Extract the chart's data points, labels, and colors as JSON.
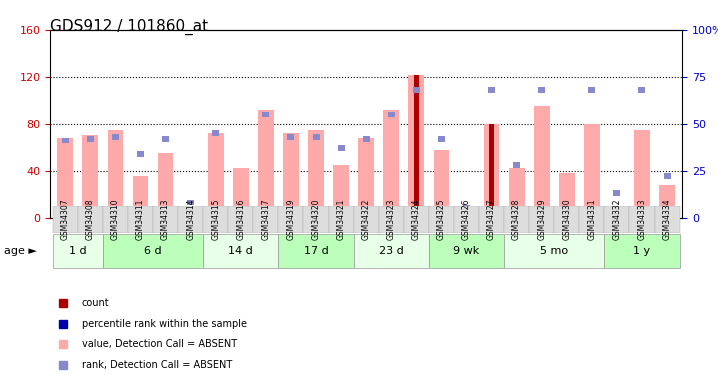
{
  "title": "GDS912 / 101860_at",
  "samples": [
    "GSM34307",
    "GSM34308",
    "GSM34310",
    "GSM34311",
    "GSM34313",
    "GSM34314",
    "GSM34315",
    "GSM34316",
    "GSM34317",
    "GSM34319",
    "GSM34320",
    "GSM34321",
    "GSM34322",
    "GSM34323",
    "GSM34324",
    "GSM34325",
    "GSM34326",
    "GSM34327",
    "GSM34328",
    "GSM34329",
    "GSM34330",
    "GSM34331",
    "GSM34332",
    "GSM34333",
    "GSM34334"
  ],
  "pink_values": [
    68,
    70,
    75,
    35,
    55,
    8,
    72,
    42,
    92,
    72,
    75,
    45,
    68,
    92,
    122,
    58,
    8,
    80,
    42,
    95,
    38,
    80,
    5,
    75,
    28
  ],
  "blue_rank_values": [
    41,
    42,
    43,
    34,
    42,
    8,
    45,
    null,
    55,
    43,
    43,
    37,
    42,
    55,
    68,
    42,
    5,
    68,
    28,
    68,
    null,
    68,
    13,
    68,
    22
  ],
  "count_values": [
    0,
    0,
    0,
    0,
    0,
    0,
    0,
    0,
    0,
    0,
    0,
    0,
    0,
    0,
    122,
    0,
    0,
    80,
    0,
    0,
    0,
    0,
    0,
    0,
    0
  ],
  "age_groups": [
    {
      "label": "1 d",
      "samples": [
        "GSM34307",
        "GSM34308"
      ]
    },
    {
      "label": "6 d",
      "samples": [
        "GSM34310",
        "GSM34311",
        "GSM34313",
        "GSM34314"
      ]
    },
    {
      "label": "14 d",
      "samples": [
        "GSM34315",
        "GSM34316",
        "GSM34317"
      ]
    },
    {
      "label": "17 d",
      "samples": [
        "GSM34319",
        "GSM34320",
        "GSM34321"
      ]
    },
    {
      "label": "23 d",
      "samples": [
        "GSM34322",
        "GSM34323",
        "GSM34324"
      ]
    },
    {
      "label": "9 wk",
      "samples": [
        "GSM34325",
        "GSM34326",
        "GSM34327"
      ]
    },
    {
      "label": "5 mo",
      "samples": [
        "GSM34328",
        "GSM34329",
        "GSM34330",
        "GSM34331"
      ]
    },
    {
      "label": "1 y",
      "samples": [
        "GSM34332",
        "GSM34333",
        "GSM34334"
      ]
    }
  ],
  "ylim_left": [
    0,
    160
  ],
  "ylim_right": [
    0,
    100
  ],
  "yticks_left": [
    0,
    40,
    80,
    120,
    160
  ],
  "yticks_right": [
    0,
    25,
    50,
    75,
    100
  ],
  "left_color": "#cc0000",
  "right_color": "#0000cc",
  "pink_color": "#ffaaaa",
  "blue_color": "#8888cc",
  "dark_red_color": "#aa0000",
  "group_colors": [
    "#ccffcc",
    "#aaffaa"
  ],
  "bg_color": "#ffffff",
  "tick_bg": "#dddddd"
}
